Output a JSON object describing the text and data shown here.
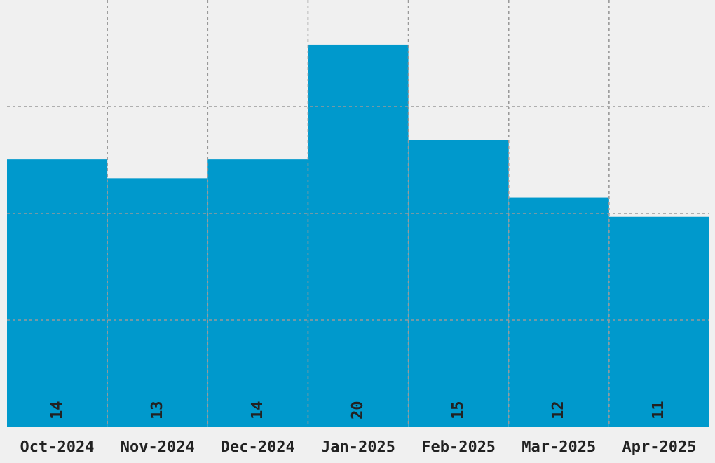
{
  "chart_data": {
    "type": "bar",
    "categories": [
      "Oct-2024",
      "Nov-2024",
      "Dec-2024",
      "Jan-2025",
      "Feb-2025",
      "Mar-2025",
      "Apr-2025"
    ],
    "values": [
      14,
      13,
      14,
      20,
      15,
      12,
      11
    ],
    "color": "#0099cc",
    "data_labels": true,
    "ylim": [
      0,
      22.35
    ],
    "yticks": [
      {
        "value": 5.59,
        "label": null
      },
      {
        "value": 11.18,
        "label": null
      },
      {
        "value": 16.76,
        "label": null
      }
    ],
    "grid": true,
    "tick_labels": "x"
  }
}
